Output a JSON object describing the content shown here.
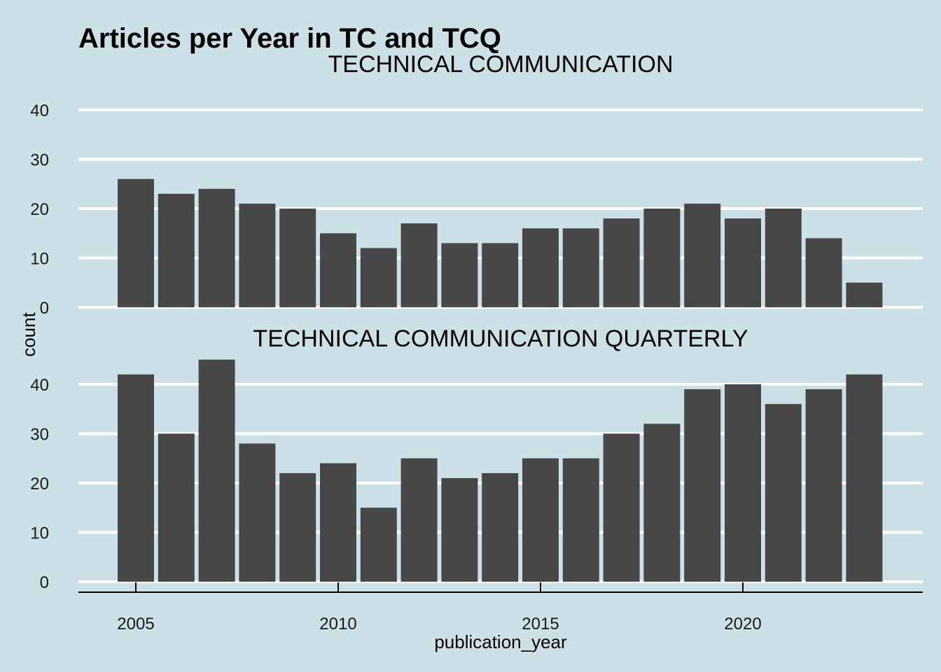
{
  "chart_data": {
    "type": "bar",
    "title": "Articles per Year in TC and TCQ",
    "xlabel": "publication_year",
    "ylabel": "count",
    "x_ticks": [
      2005,
      2010,
      2015,
      2020
    ],
    "y_ticks": [
      0,
      10,
      20,
      30,
      40
    ],
    "x": [
      2005,
      2006,
      2007,
      2008,
      2009,
      2010,
      2011,
      2012,
      2013,
      2014,
      2015,
      2016,
      2017,
      2018,
      2019,
      2020,
      2021,
      2022,
      2023
    ],
    "panels": [
      {
        "name": "TECHNICAL COMMUNICATION",
        "values": [
          26,
          23,
          24,
          21,
          20,
          15,
          12,
          17,
          13,
          13,
          16,
          16,
          18,
          20,
          21,
          18,
          20,
          14,
          5
        ]
      },
      {
        "name": "TECHNICAL COMMUNICATION QUARTERLY",
        "values": [
          42,
          30,
          45,
          28,
          22,
          24,
          15,
          25,
          21,
          22,
          25,
          25,
          30,
          32,
          39,
          40,
          36,
          39,
          42
        ]
      }
    ],
    "grid": true,
    "bar_color": "#474747",
    "background_color": "#cce0e8",
    "grid_color": "#ffffff"
  }
}
